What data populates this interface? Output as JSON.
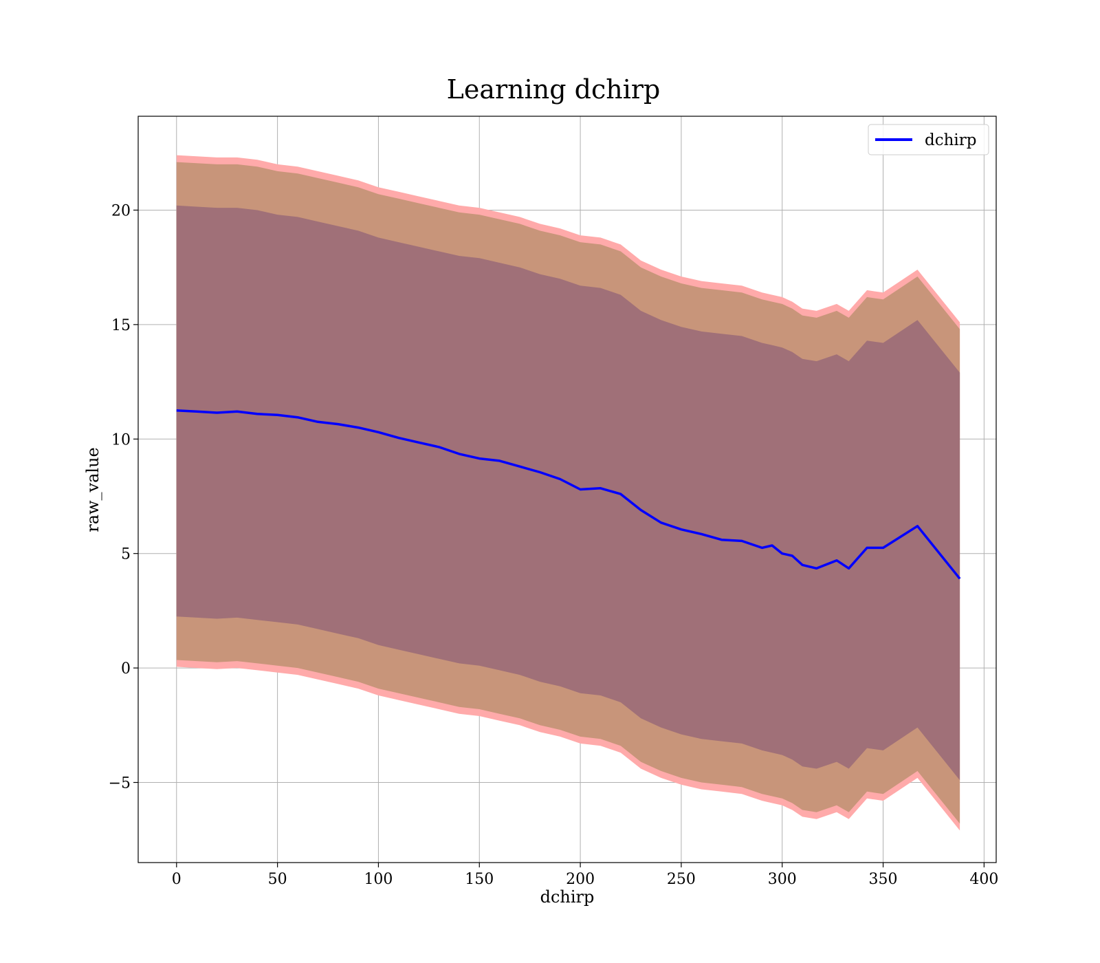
{
  "chart_data": {
    "type": "line",
    "title": "Learning dchirp",
    "xlabel": "dchirp",
    "ylabel": "raw_value",
    "xlim": [
      -19,
      406
    ],
    "ylim": [
      -8.5,
      24.1
    ],
    "xticks": [
      0,
      50,
      100,
      150,
      200,
      250,
      300,
      350,
      400
    ],
    "xtick_labels": [
      "0",
      "50",
      "100",
      "150",
      "200",
      "250",
      "300",
      "350",
      "400"
    ],
    "yticks": [
      -5,
      0,
      5,
      10,
      15,
      20
    ],
    "ytick_labels": [
      "−5",
      "0",
      "5",
      "10",
      "15",
      "20"
    ],
    "grid": true,
    "legend": {
      "placement": "top-right",
      "entries": [
        "dchirp"
      ]
    },
    "colors": {
      "line": "#0000ff",
      "band_outer": "#ffaaaa",
      "band_middle": "#c8957a",
      "band_inner": "#a07078",
      "grid": "#b0b0b0"
    },
    "x": [
      0,
      10,
      20,
      30,
      40,
      50,
      60,
      70,
      80,
      90,
      100,
      110,
      120,
      130,
      140,
      150,
      160,
      170,
      180,
      190,
      200,
      210,
      220,
      230,
      240,
      250,
      260,
      270,
      280,
      290,
      295,
      300,
      305,
      310,
      317,
      327,
      333,
      342,
      350,
      367,
      388
    ],
    "series": [
      {
        "name": "dchirp",
        "values": [
          11.25,
          11.2,
          11.15,
          11.2,
          11.1,
          11.05,
          10.95,
          10.75,
          10.65,
          10.5,
          10.3,
          10.05,
          9.85,
          9.65,
          9.35,
          9.15,
          9.05,
          8.8,
          8.55,
          8.25,
          7.8,
          7.85,
          7.6,
          6.9,
          6.35,
          6.05,
          5.85,
          5.6,
          5.55,
          5.25,
          5.35,
          5.0,
          4.9,
          4.5,
          4.35,
          4.7,
          4.35,
          5.25,
          5.25,
          6.2,
          3.9
        ]
      },
      {
        "name": "",
        "values": [
          22.4,
          22.35,
          22.3,
          22.3,
          22.2,
          22.0,
          21.9,
          21.7,
          21.5,
          21.3,
          21.0,
          20.8,
          20.6,
          20.4,
          20.2,
          20.1,
          19.9,
          19.7,
          19.4,
          19.2,
          18.9,
          18.8,
          18.5,
          17.8,
          17.4,
          17.1,
          16.9,
          16.8,
          16.7,
          16.4,
          16.3,
          16.2,
          16.0,
          15.7,
          15.6,
          15.9,
          15.6,
          16.5,
          16.4,
          17.4,
          15.1
        ]
      },
      {
        "name": "",
        "values": [
          22.1,
          22.05,
          22.0,
          22.0,
          21.9,
          21.7,
          21.6,
          21.4,
          21.2,
          21.0,
          20.7,
          20.5,
          20.3,
          20.1,
          19.9,
          19.8,
          19.6,
          19.4,
          19.1,
          18.9,
          18.6,
          18.5,
          18.2,
          17.5,
          17.1,
          16.8,
          16.6,
          16.5,
          16.4,
          16.1,
          16.0,
          15.9,
          15.7,
          15.4,
          15.3,
          15.6,
          15.3,
          16.2,
          16.1,
          17.1,
          14.8
        ]
      },
      {
        "name": "",
        "values": [
          20.2,
          20.15,
          20.1,
          20.1,
          20.0,
          19.8,
          19.7,
          19.5,
          19.3,
          19.1,
          18.8,
          18.6,
          18.4,
          18.2,
          18.0,
          17.9,
          17.7,
          17.5,
          17.2,
          17.0,
          16.7,
          16.6,
          16.3,
          15.6,
          15.2,
          14.9,
          14.7,
          14.6,
          14.5,
          14.2,
          14.1,
          14.0,
          13.8,
          13.5,
          13.4,
          13.7,
          13.4,
          14.3,
          14.2,
          15.2,
          12.9
        ]
      },
      {
        "name": "",
        "values": [
          2.25,
          2.2,
          2.15,
          2.2,
          2.1,
          2.0,
          1.9,
          1.7,
          1.5,
          1.3,
          1.0,
          0.8,
          0.6,
          0.4,
          0.2,
          0.1,
          -0.1,
          -0.3,
          -0.6,
          -0.8,
          -1.1,
          -1.2,
          -1.5,
          -2.2,
          -2.6,
          -2.9,
          -3.1,
          -3.2,
          -3.3,
          -3.6,
          -3.7,
          -3.8,
          -4.0,
          -4.3,
          -4.4,
          -4.1,
          -4.4,
          -3.5,
          -3.6,
          -2.6,
          -4.9
        ]
      },
      {
        "name": "",
        "values": [
          0.35,
          0.3,
          0.25,
          0.3,
          0.2,
          0.1,
          0.0,
          -0.2,
          -0.4,
          -0.6,
          -0.9,
          -1.1,
          -1.3,
          -1.5,
          -1.7,
          -1.8,
          -2.0,
          -2.2,
          -2.5,
          -2.7,
          -3.0,
          -3.1,
          -3.4,
          -4.1,
          -4.5,
          -4.8,
          -5.0,
          -5.1,
          -5.2,
          -5.5,
          -5.6,
          -5.7,
          -5.9,
          -6.2,
          -6.3,
          -6.0,
          -6.3,
          -5.4,
          -5.5,
          -4.5,
          -6.8
        ]
      },
      {
        "name": "",
        "values": [
          0.05,
          0.0,
          -0.05,
          0.0,
          -0.1,
          -0.2,
          -0.3,
          -0.5,
          -0.7,
          -0.9,
          -1.2,
          -1.4,
          -1.6,
          -1.8,
          -2.0,
          -2.1,
          -2.3,
          -2.5,
          -2.8,
          -3.0,
          -3.3,
          -3.4,
          -3.7,
          -4.4,
          -4.8,
          -5.1,
          -5.3,
          -5.4,
          -5.5,
          -5.8,
          -5.9,
          -6.0,
          -6.2,
          -6.5,
          -6.6,
          -6.3,
          -6.6,
          -5.7,
          -5.8,
          -4.8,
          -7.1
        ]
      }
    ]
  }
}
